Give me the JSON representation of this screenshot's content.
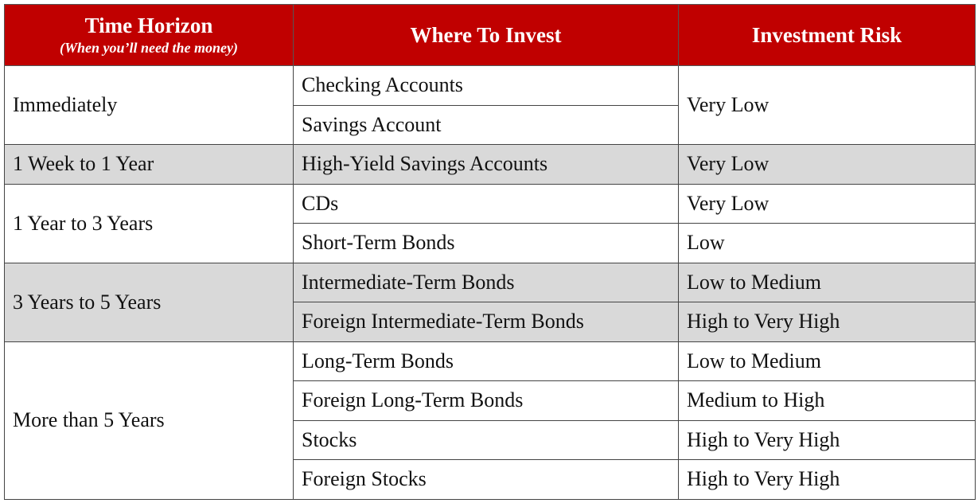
{
  "header": {
    "title": "Time Horizon",
    "subtitle": "(When you’ll need the money)",
    "where": "Where To Invest",
    "risk": "Investment Risk"
  },
  "groups": [
    {
      "horizon": "Immediately",
      "investments": [
        "Checking Accounts",
        "Savings Account"
      ],
      "risks": [
        "Very Low"
      ],
      "shaded": false
    },
    {
      "horizon": "1 Week to 1 Year",
      "investments": [
        "High-Yield Savings Accounts"
      ],
      "risks": [
        "Very Low"
      ],
      "shaded": true
    },
    {
      "horizon": "1 Year to 3 Years",
      "investments": [
        "CDs",
        "Short-Term Bonds"
      ],
      "risks": [
        "Very Low",
        "Low"
      ],
      "shaded": false
    },
    {
      "horizon": "3 Years to 5 Years",
      "investments": [
        "Intermediate-Term Bonds",
        "Foreign Intermediate-Term Bonds"
      ],
      "risks": [
        "Low to Medium",
        "High to Very High"
      ],
      "shaded": true
    },
    {
      "horizon": "More than 5 Years",
      "investments": [
        "Long-Term Bonds",
        "Foreign Long-Term Bonds",
        "Stocks",
        "Foreign Stocks"
      ],
      "risks": [
        "Low to Medium",
        "Medium to High",
        "High to Very High",
        "High to Very High"
      ],
      "shaded": false
    }
  ]
}
